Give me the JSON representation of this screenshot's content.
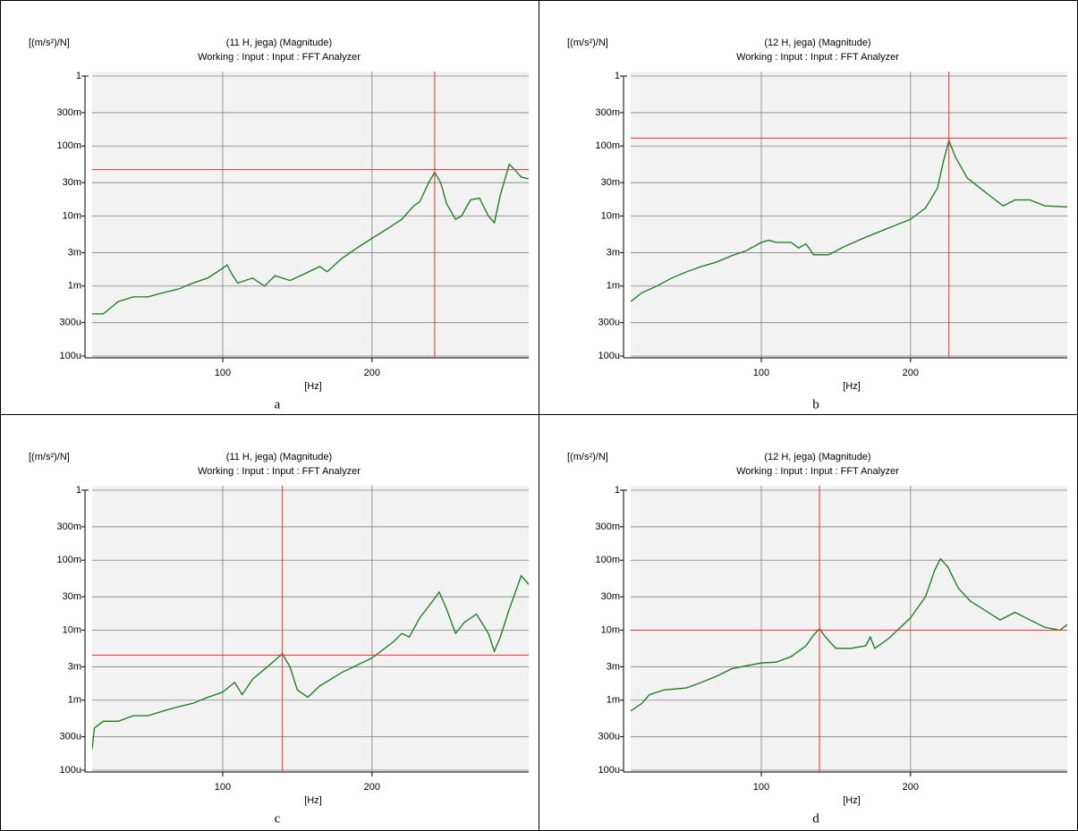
{
  "chart_data": [
    {
      "type": "line",
      "caption": "a",
      "ylabel": "[(m/s²)/N]",
      "title": "(11 H, jega) (Magnitude)",
      "subtitle": "Working : Input : Input : FFT Analyzer",
      "xlabel": "[Hz]",
      "x": [
        12.5,
        20,
        30,
        40,
        50,
        60,
        70,
        80,
        90,
        100,
        103,
        106,
        110,
        120,
        128,
        135,
        145,
        155,
        165,
        170,
        180,
        190,
        200,
        210,
        220,
        228,
        232,
        238,
        242,
        246,
        250,
        256,
        260,
        266,
        272,
        278,
        282,
        286,
        292,
        296,
        300,
        305
      ],
      "values": [
        0.0004,
        0.0004,
        0.0006,
        0.0007,
        0.0007,
        0.0008,
        0.0009,
        0.0011,
        0.0013,
        0.0018,
        0.002,
        0.0015,
        0.0011,
        0.0013,
        0.001,
        0.0014,
        0.0012,
        0.0015,
        0.0019,
        0.0016,
        0.0025,
        0.0035,
        0.0048,
        0.0065,
        0.009,
        0.014,
        0.016,
        0.03,
        0.042,
        0.03,
        0.015,
        0.009,
        0.01,
        0.017,
        0.018,
        0.01,
        0.008,
        0.02,
        0.055,
        0.045,
        0.036,
        0.034
      ],
      "color": "#137a13",
      "cursor": {
        "x": 242,
        "y": 0.046
      },
      "cursor_color": "#e83030",
      "xlim": [
        12.5,
        305
      ],
      "xticks": [
        100,
        200
      ],
      "ylim": [
        0.0001,
        1
      ],
      "log_y": true,
      "grid": true,
      "yticks": [
        1,
        {
          "value": 0.3,
          "label": "300m"
        },
        {
          "value": 0.1,
          "label": "100m"
        },
        {
          "value": 0.03,
          "label": "30m"
        },
        {
          "value": 0.01,
          "label": "10m"
        },
        {
          "value": 0.003,
          "label": "3m"
        },
        {
          "value": 0.001,
          "label": "1m"
        },
        {
          "value": 0.0003,
          "label": "300u"
        },
        {
          "value": 0.0001,
          "label": "100u"
        }
      ]
    },
    {
      "type": "line",
      "caption": "b",
      "ylabel": "[(m/s²)/N]",
      "title": "(12 H, jega) (Magnitude)",
      "subtitle": "Working : Input : Input : FFT Analyzer",
      "xlabel": "[Hz]",
      "x": [
        12.5,
        20,
        30,
        40,
        50,
        60,
        70,
        80,
        90,
        100,
        105,
        110,
        120,
        125,
        130,
        135,
        145,
        155,
        170,
        185,
        200,
        210,
        218,
        222,
        225.7,
        230,
        238,
        250,
        262,
        270,
        280,
        290,
        305
      ],
      "values": [
        0.0006,
        0.0008,
        0.001,
        0.0013,
        0.0016,
        0.0019,
        0.0022,
        0.0027,
        0.0032,
        0.0042,
        0.0045,
        0.0042,
        0.0042,
        0.0035,
        0.004,
        0.0028,
        0.0028,
        0.0036,
        0.005,
        0.0067,
        0.009,
        0.013,
        0.025,
        0.06,
        0.12,
        0.07,
        0.035,
        0.022,
        0.014,
        0.017,
        0.017,
        0.014,
        0.0135
      ],
      "color": "#137a13",
      "cursor": {
        "x": 225.7,
        "y": 0.13
      },
      "cursor_color": "#e83030",
      "xlim": [
        12.5,
        305
      ],
      "xticks": [
        100,
        200
      ],
      "ylim": [
        0.0001,
        1
      ],
      "log_y": true,
      "grid": true,
      "yticks": [
        1,
        {
          "value": 0.3,
          "label": "300m"
        },
        {
          "value": 0.1,
          "label": "100m"
        },
        {
          "value": 0.03,
          "label": "30m"
        },
        {
          "value": 0.01,
          "label": "10m"
        },
        {
          "value": 0.003,
          "label": "3m"
        },
        {
          "value": 0.001,
          "label": "1m"
        },
        {
          "value": 0.0003,
          "label": "300u"
        },
        {
          "value": 0.0001,
          "label": "100u"
        }
      ]
    },
    {
      "type": "line",
      "caption": "c",
      "ylabel": "[(m/s²)/N]",
      "title": "(11 H, jega) (Magnitude)",
      "subtitle": "Working : Input : Input : FFT Analyzer",
      "xlabel": "[Hz]",
      "x": [
        12.5,
        14,
        20,
        30,
        40,
        50,
        60,
        70,
        80,
        90,
        100,
        108,
        113,
        120,
        130,
        140,
        145,
        150,
        157,
        165,
        180,
        200,
        215,
        220,
        225,
        232,
        240,
        245,
        250,
        256,
        262,
        270,
        278,
        282,
        286,
        292,
        300,
        305
      ],
      "values": [
        0.0002,
        0.0004,
        0.0005,
        0.0005,
        0.0006,
        0.0006,
        0.0007,
        0.0008,
        0.0009,
        0.0011,
        0.0013,
        0.0018,
        0.0012,
        0.002,
        0.003,
        0.0046,
        0.003,
        0.0014,
        0.0011,
        0.0016,
        0.0025,
        0.004,
        0.007,
        0.009,
        0.008,
        0.015,
        0.025,
        0.035,
        0.02,
        0.009,
        0.013,
        0.017,
        0.009,
        0.005,
        0.008,
        0.02,
        0.06,
        0.045
      ],
      "color": "#137a13",
      "cursor": {
        "x": 140,
        "y": 0.0044
      },
      "cursor_color": "#e83030",
      "xlim": [
        12.5,
        305
      ],
      "xticks": [
        100,
        200
      ],
      "ylim": [
        0.0001,
        1
      ],
      "log_y": true,
      "grid": true,
      "yticks": [
        1,
        {
          "value": 0.3,
          "label": "300m"
        },
        {
          "value": 0.1,
          "label": "100m"
        },
        {
          "value": 0.03,
          "label": "30m"
        },
        {
          "value": 0.01,
          "label": "10m"
        },
        {
          "value": 0.003,
          "label": "3m"
        },
        {
          "value": 0.001,
          "label": "1m"
        },
        {
          "value": 0.0003,
          "label": "300u"
        },
        {
          "value": 0.0001,
          "label": "100u"
        }
      ]
    },
    {
      "type": "line",
      "caption": "d",
      "ylabel": "[(m/s²)/N]",
      "title": "(12 H, jega) (Magnitude)",
      "subtitle": "Working : Input : Input : FFT Analyzer",
      "xlabel": "[Hz]",
      "x": [
        12.5,
        20,
        25,
        35,
        50,
        60,
        70,
        80,
        90,
        100,
        110,
        120,
        130,
        135,
        139,
        143,
        150,
        160,
        170,
        173,
        176,
        185,
        200,
        210,
        216,
        220,
        225,
        232,
        240,
        252,
        260,
        270,
        280,
        290,
        300,
        305
      ],
      "values": [
        0.0007,
        0.0009,
        0.0012,
        0.0014,
        0.0015,
        0.0018,
        0.0022,
        0.0028,
        0.0031,
        0.0034,
        0.0035,
        0.0042,
        0.006,
        0.0085,
        0.0105,
        0.008,
        0.0055,
        0.0055,
        0.006,
        0.008,
        0.0055,
        0.0075,
        0.015,
        0.03,
        0.07,
        0.105,
        0.08,
        0.04,
        0.026,
        0.018,
        0.014,
        0.018,
        0.014,
        0.011,
        0.01,
        0.012
      ],
      "color": "#137a13",
      "cursor": {
        "x": 139,
        "y": 0.01
      },
      "cursor_color": "#e83030",
      "xlim": [
        12.5,
        305
      ],
      "xticks": [
        100,
        200
      ],
      "ylim": [
        0.0001,
        1
      ],
      "log_y": true,
      "grid": true,
      "yticks": [
        1,
        {
          "value": 0.3,
          "label": "300m"
        },
        {
          "value": 0.1,
          "label": "100m"
        },
        {
          "value": 0.03,
          "label": "30m"
        },
        {
          "value": 0.01,
          "label": "10m"
        },
        {
          "value": 0.003,
          "label": "3m"
        },
        {
          "value": 0.001,
          "label": "1m"
        },
        {
          "value": 0.0003,
          "label": "300u"
        },
        {
          "value": 0.0001,
          "label": "100u"
        }
      ]
    }
  ]
}
